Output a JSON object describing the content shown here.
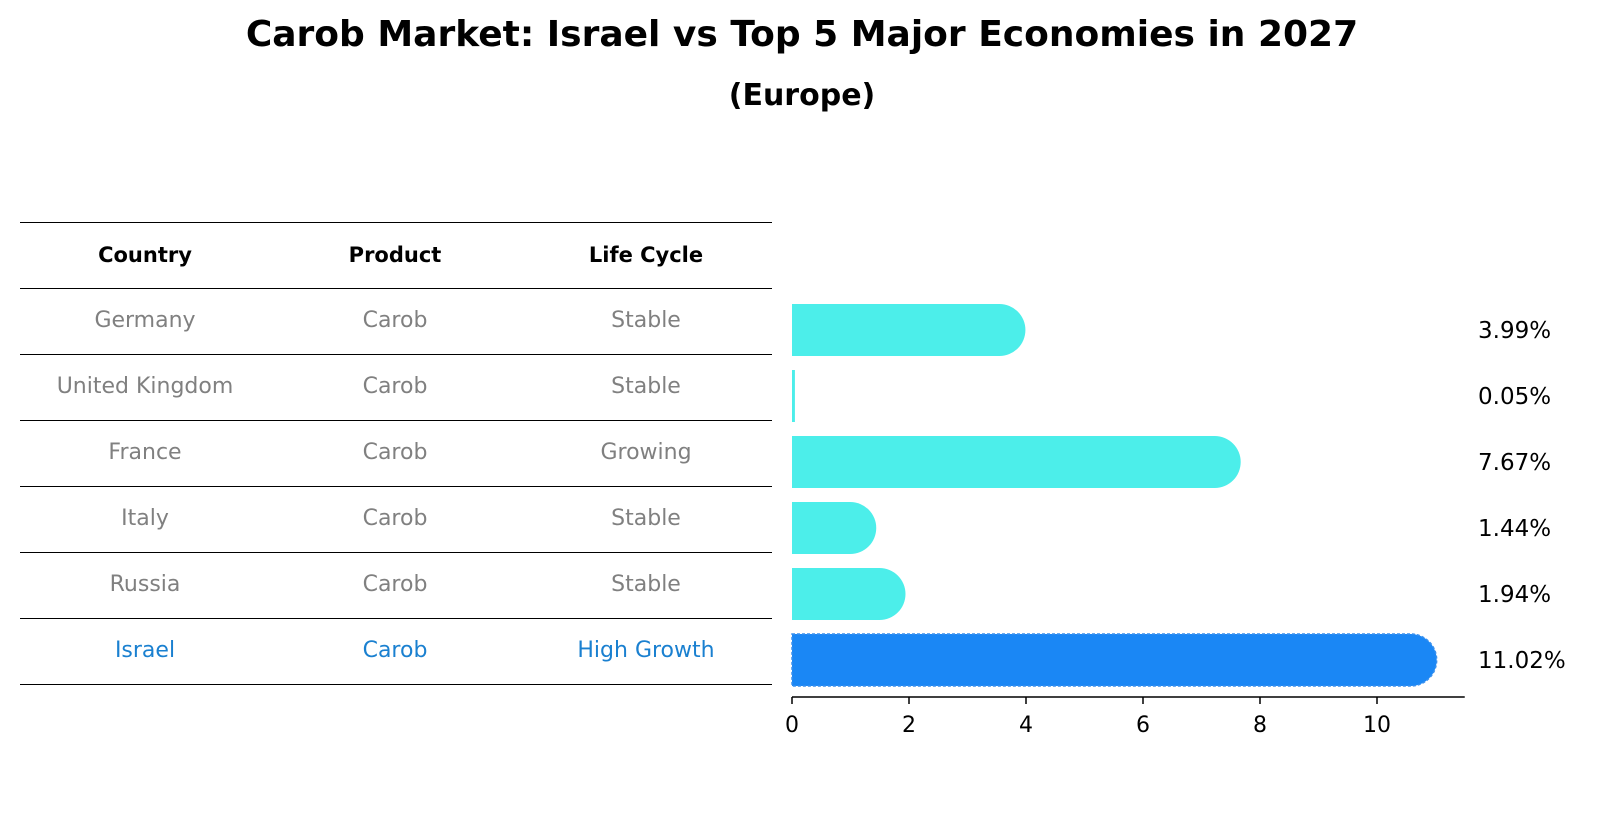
{
  "title": "Carob Market: Israel vs Top 5 Major Economies in 2027",
  "subtitle": "(Europe)",
  "table": {
    "headers": [
      "Country",
      "Product",
      "Life Cycle"
    ],
    "rows": [
      [
        "Germany",
        "Carob",
        "Stable"
      ],
      [
        "United Kingdom",
        "Carob",
        "Stable"
      ],
      [
        "France",
        "Carob",
        "Growing"
      ],
      [
        "Italy",
        "Carob",
        "Stable"
      ],
      [
        "Russia",
        "Carob",
        "Stable"
      ],
      [
        "Israel",
        "Carob",
        "High Growth"
      ]
    ],
    "highlight_row": 5,
    "text_color": "#808080",
    "highlight_text_color": "#1a80d0"
  },
  "chart_data": {
    "type": "bar",
    "orientation": "horizontal",
    "categories": [
      "Germany",
      "United Kingdom",
      "France",
      "Italy",
      "Russia",
      "Israel"
    ],
    "values": [
      3.99,
      0.05,
      7.67,
      1.44,
      1.94,
      11.02
    ],
    "value_labels": [
      "3.99%",
      "0.05%",
      "7.67%",
      "1.44%",
      "1.94%",
      "11.02%"
    ],
    "xlim": [
      0,
      11.5
    ],
    "xticks": [
      0,
      2,
      4,
      6,
      8,
      10
    ],
    "bar_colors": [
      "#4ceeea",
      "#4ceeea",
      "#4ceeea",
      "#4ceeea",
      "#4ceeea",
      "#1a87f5"
    ],
    "highlight_category": "Israel",
    "grid": false,
    "legend": false
  }
}
